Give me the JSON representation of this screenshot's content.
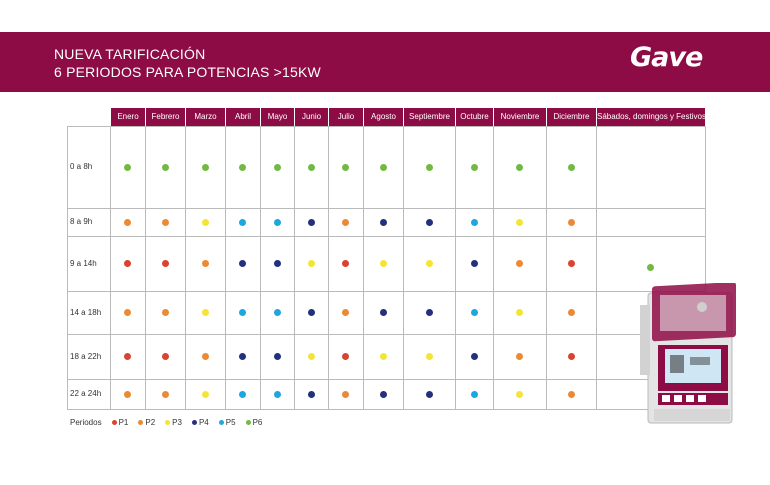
{
  "banner": {
    "line1": "NUEVA TARIFICACIÓN",
    "line2": "6 PERIODOS PARA POTENCIAS >15KW",
    "logo": "Gave"
  },
  "months": [
    "Enero",
    "Febrero",
    "Marzo",
    "Abril",
    "Mayo",
    "Junio",
    "Julio",
    "Agosto",
    "Septiembre",
    "Octubre",
    "Noviembre",
    "Diciembre",
    "Sábados, domingos y Festivos"
  ],
  "periods": [
    {
      "label": "0 a 8h",
      "values": [
        "P6",
        "P6",
        "P6",
        "P6",
        "P6",
        "P6",
        "P6",
        "P6",
        "P6",
        "P6",
        "P6",
        "P6"
      ]
    },
    {
      "label": "8 a 9h",
      "values": [
        "P2",
        "P2",
        "P3",
        "P5",
        "P5",
        "P4",
        "P2",
        "P4",
        "P4",
        "P5",
        "P3",
        "P2"
      ]
    },
    {
      "label": "9 a 14h",
      "values": [
        "P1",
        "P1",
        "P2",
        "P4",
        "P4",
        "P3",
        "P1",
        "P3",
        "P3",
        "P4",
        "P2",
        "P1"
      ]
    },
    {
      "label": "14 a 18h",
      "values": [
        "P2",
        "P2",
        "P3",
        "P5",
        "P5",
        "P4",
        "P2",
        "P4",
        "P4",
        "P5",
        "P3",
        "P2"
      ]
    },
    {
      "label": "18 a 22h",
      "values": [
        "P1",
        "P1",
        "P2",
        "P4",
        "P4",
        "P3",
        "P1",
        "P3",
        "P3",
        "P4",
        "P2",
        "P1"
      ]
    },
    {
      "label": "22 a 24h",
      "values": [
        "P2",
        "P2",
        "P3",
        "P5",
        "P5",
        "P4",
        "P2",
        "P4",
        "P4",
        "P5",
        "P3",
        "P2"
      ]
    }
  ],
  "weekend_value": "P6",
  "legend": {
    "title": "Periodos",
    "items": [
      "P1",
      "P2",
      "P3",
      "P4",
      "P5",
      "P6"
    ]
  },
  "colors": {
    "brand": "#8e0c45",
    "P1": "#d9432f",
    "P2": "#ec8a34",
    "P3": "#f4e532",
    "P4": "#23307e",
    "P5": "#1ea6dd",
    "P6": "#72b944"
  }
}
